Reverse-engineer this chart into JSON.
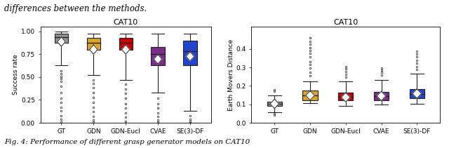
{
  "plot1_title": "CAT10",
  "plot1_ylabel": "Success rate",
  "plot1_xlabels": [
    "GT",
    "GDN",
    "GDN-Eucl",
    "CVAE",
    "SE(3)-DF"
  ],
  "plot1_ylim": [
    0.0,
    1.05
  ],
  "plot1_yticks": [
    0.0,
    0.25,
    0.5,
    0.75,
    1.0
  ],
  "plot2_title": "CAT10",
  "plot2_ylabel": "Earth Movers Distance",
  "plot2_xlabels": [
    "GT",
    "GDN",
    "GDN-Eucl",
    "CVAE",
    "SE(3)-DF"
  ],
  "plot2_ylim": [
    0.0,
    0.52
  ],
  "plot2_yticks": [
    0.0,
    0.1,
    0.2,
    0.3,
    0.4
  ],
  "box_colors": [
    "#909090",
    "#DAA520",
    "#CC0000",
    "#7B2D8B",
    "#2244CC"
  ],
  "box_edge_color": "#222222",
  "header_text": "differences between the methods.",
  "caption_text": "Fig. 4: Performance of different grasp generator models on CAT10",
  "plot1_boxes": [
    {
      "q1": 0.875,
      "med": 0.935,
      "q3": 0.975,
      "whislo": 0.625,
      "whishi": 1.0,
      "mean": 0.885,
      "fliers_lo": [
        0.57,
        0.54,
        0.51,
        0.48,
        0.45,
        0.4,
        0.33,
        0.27,
        0.22,
        0.17,
        0.13,
        0.08,
        0.04,
        0.01
      ],
      "fliers_hi": []
    },
    {
      "q1": 0.8,
      "med": 0.875,
      "q3": 0.925,
      "whislo": 0.525,
      "whishi": 0.975,
      "mean": 0.8,
      "fliers_lo": [
        0.47,
        0.43,
        0.38,
        0.33,
        0.28,
        0.22,
        0.17,
        0.12,
        0.07,
        0.03,
        0.01
      ],
      "fliers_hi": []
    },
    {
      "q1": 0.8,
      "med": 0.875,
      "q3": 0.93,
      "whislo": 0.47,
      "whishi": 0.975,
      "mean": 0.8,
      "fliers_lo": [
        0.42,
        0.37,
        0.32,
        0.27,
        0.21,
        0.16,
        0.11,
        0.06,
        0.02
      ],
      "fliers_hi": []
    },
    {
      "q1": 0.625,
      "med": 0.75,
      "q3": 0.825,
      "whislo": 0.33,
      "whishi": 0.975,
      "mean": 0.695,
      "fliers_lo": [
        0.27,
        0.21,
        0.16,
        0.11,
        0.07,
        0.03,
        0.01
      ],
      "fliers_hi": []
    },
    {
      "q1": 0.625,
      "med": 0.78,
      "q3": 0.9,
      "whislo": 0.13,
      "whishi": 0.975,
      "mean": 0.725,
      "fliers_lo": [
        0.08,
        0.04,
        0.02,
        0.0
      ],
      "fliers_hi": []
    }
  ],
  "plot2_boxes": [
    {
      "q1": 0.093,
      "med": 0.103,
      "q3": 0.115,
      "whislo": 0.058,
      "whishi": 0.15,
      "mean": 0.103,
      "fliers_lo": [
        0.048,
        0.042
      ],
      "fliers_hi": [
        0.17,
        0.178
      ]
    },
    {
      "q1": 0.123,
      "med": 0.148,
      "q3": 0.175,
      "whislo": 0.108,
      "whishi": 0.225,
      "mean": 0.148,
      "fliers_lo": [],
      "fliers_hi": [
        0.255,
        0.275,
        0.295,
        0.315,
        0.33,
        0.355,
        0.375,
        0.39,
        0.405,
        0.425,
        0.44,
        0.46
      ]
    },
    {
      "q1": 0.12,
      "med": 0.14,
      "q3": 0.163,
      "whislo": 0.093,
      "whishi": 0.223,
      "mean": 0.138,
      "fliers_lo": [],
      "fliers_hi": [
        0.248,
        0.262,
        0.278,
        0.292,
        0.305
      ]
    },
    {
      "q1": 0.123,
      "med": 0.145,
      "q3": 0.168,
      "whislo": 0.098,
      "whishi": 0.233,
      "mean": 0.145,
      "fliers_lo": [],
      "fliers_hi": [
        0.258,
        0.272,
        0.285,
        0.298
      ]
    },
    {
      "q1": 0.133,
      "med": 0.155,
      "q3": 0.183,
      "whislo": 0.103,
      "whishi": 0.265,
      "mean": 0.158,
      "fliers_lo": [],
      "fliers_hi": [
        0.288,
        0.305,
        0.322,
        0.338,
        0.355,
        0.373,
        0.388
      ]
    }
  ]
}
